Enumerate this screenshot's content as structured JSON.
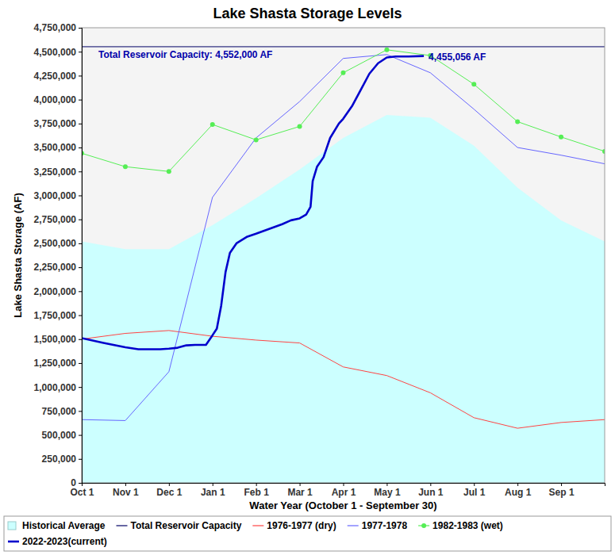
{
  "chart_data": {
    "type": "line",
    "title": "Lake Shasta Storage Levels",
    "x_label": "Water Year (October 1 - September 30)",
    "y_label": "Lake Shasta Storage (AF)",
    "xlim": [
      0,
      12
    ],
    "xticks": [
      {
        "value": 0,
        "label": "Oct 1"
      },
      {
        "value": 1,
        "label": "Nov 1"
      },
      {
        "value": 2,
        "label": "Dec 1"
      },
      {
        "value": 3,
        "label": "Jan 1"
      },
      {
        "value": 4,
        "label": "Feb 1"
      },
      {
        "value": 5,
        "label": "Mar 1"
      },
      {
        "value": 6,
        "label": "Apr 1"
      },
      {
        "value": 7,
        "label": "May 1"
      },
      {
        "value": 8,
        "label": "Jun 1"
      },
      {
        "value": 9,
        "label": "Jul 1"
      },
      {
        "value": 10,
        "label": "Aug 1"
      },
      {
        "value": 11,
        "label": "Sep 1"
      }
    ],
    "ylim": [
      0,
      4750000
    ],
    "yticks": [
      0,
      {
        "value": 250000,
        "label": "250,000"
      },
      {
        "value": 500000,
        "label": "500,000"
      },
      {
        "value": 750000,
        "label": "750,000"
      },
      {
        "value": 1000000,
        "label": "1,000,000"
      },
      {
        "value": 1250000,
        "label": "1,250,000"
      },
      {
        "value": 1500000,
        "label": "1,500,000"
      },
      {
        "value": 1750000,
        "label": "1,750,000"
      },
      {
        "value": 2000000,
        "label": "2,000,000"
      },
      {
        "value": 2250000,
        "label": "2,250,000"
      },
      {
        "value": 2500000,
        "label": "2,500,000"
      },
      {
        "value": 2750000,
        "label": "2,750,000"
      },
      {
        "value": 3000000,
        "label": "3,000,000"
      },
      {
        "value": 3250000,
        "label": "3,250,000"
      },
      {
        "value": 3500000,
        "label": "3,500,000"
      },
      {
        "value": 3750000,
        "label": "3,750,000"
      },
      {
        "value": 4000000,
        "label": "4,000,000"
      },
      {
        "value": 4250000,
        "label": "4,250,000"
      },
      {
        "value": 4500000,
        "label": "4,500,000"
      },
      {
        "value": 4750000,
        "label": "4,750,000"
      }
    ],
    "grid": false,
    "legend": "bottom",
    "annotations": [
      "Total Reservoir Capacity: 4,552,000 AF",
      "4,455,056 AF"
    ],
    "series": [
      {
        "name": "Historical Average",
        "type": "area",
        "color": "#ccffff",
        "x": [
          0,
          1,
          2,
          3,
          4,
          5,
          6,
          7,
          8,
          9,
          10,
          11,
          12
        ],
        "values": [
          2520000,
          2440000,
          2440000,
          2690000,
          2970000,
          3270000,
          3600000,
          3840000,
          3810000,
          3520000,
          3080000,
          2740000,
          2520000
        ]
      },
      {
        "name": "Total Reservoir Capacity",
        "type": "line",
        "color": "#000066",
        "x": [
          0,
          12
        ],
        "values": [
          4552000,
          4552000
        ]
      },
      {
        "name": "1976-1977 (dry)",
        "type": "line",
        "color": "#ff4444",
        "x": [
          0,
          1,
          2,
          3,
          4,
          5,
          6,
          7,
          8,
          9,
          10,
          11,
          12
        ],
        "values": [
          1500000,
          1560000,
          1590000,
          1530000,
          1490000,
          1460000,
          1210000,
          1120000,
          940000,
          680000,
          570000,
          630000,
          660000
        ]
      },
      {
        "name": "1977-1978",
        "type": "line",
        "color": "#6666ff",
        "x": [
          0,
          1,
          2,
          3,
          4,
          5,
          6,
          7,
          8,
          9,
          10,
          11,
          12
        ],
        "values": [
          660000,
          650000,
          1160000,
          2980000,
          3600000,
          3980000,
          4430000,
          4470000,
          4280000,
          3900000,
          3500000,
          3420000,
          3330000
        ]
      },
      {
        "name": "1982-1983 (wet)",
        "type": "line",
        "color": "#55ee55",
        "marker": "circle",
        "x": [
          0,
          1,
          2,
          3,
          4,
          5,
          6,
          7,
          8,
          9,
          10,
          11,
          12
        ],
        "values": [
          3440000,
          3300000,
          3250000,
          3740000,
          3580000,
          3720000,
          4280000,
          4520000,
          4460000,
          4160000,
          3770000,
          3610000,
          3460000
        ]
      },
      {
        "name": "2022-2023(current)",
        "type": "line",
        "color": "#0000cc",
        "line_style": "bold",
        "x": [
          0,
          0.5,
          1,
          1.3,
          1.8,
          2,
          2.2,
          2.4,
          2.6,
          2.85,
          3,
          3.1,
          3.2,
          3.3,
          3.4,
          3.55,
          3.8,
          4,
          4.3,
          4.6,
          4.8,
          5,
          5.15,
          5.25,
          5.3,
          5.4,
          5.55,
          5.7,
          5.9,
          6,
          6.2,
          6.4,
          6.6,
          6.8,
          7,
          7.2,
          7.5,
          7.85
        ],
        "values": [
          1510000,
          1460000,
          1415000,
          1395000,
          1395000,
          1400000,
          1410000,
          1435000,
          1440000,
          1440000,
          1540000,
          1610000,
          1850000,
          2200000,
          2400000,
          2500000,
          2570000,
          2600000,
          2650000,
          2700000,
          2740000,
          2760000,
          2800000,
          2880000,
          3150000,
          3300000,
          3400000,
          3600000,
          3750000,
          3800000,
          3930000,
          4100000,
          4270000,
          4380000,
          4440000,
          4450000,
          4450000,
          4455056
        ]
      }
    ]
  }
}
